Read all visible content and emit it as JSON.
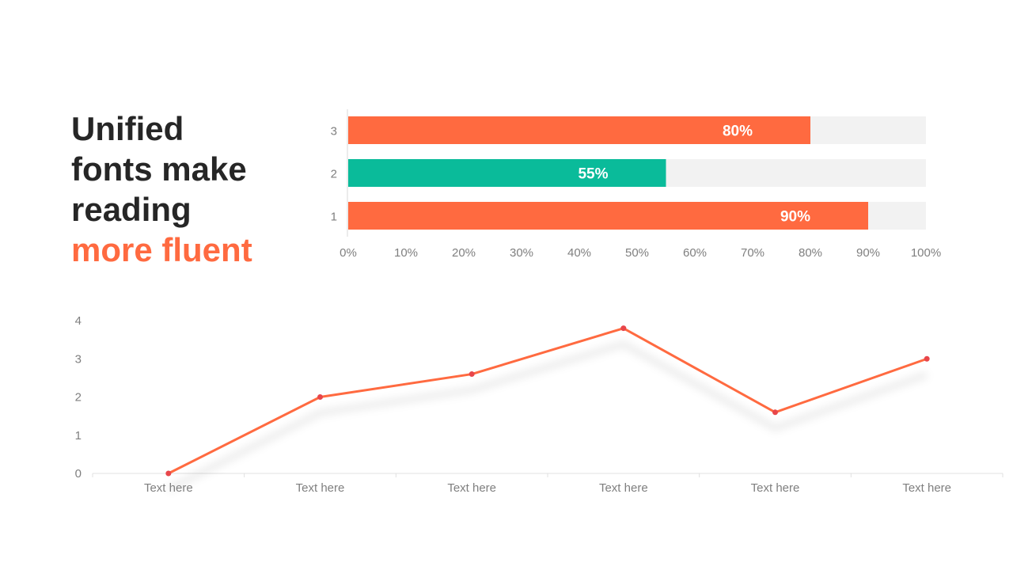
{
  "headline": {
    "lines": [
      "Unified",
      "fonts make",
      "reading"
    ],
    "accent": "more fluent"
  },
  "colors": {
    "accent": "#FF6A40",
    "teal": "#0ABB9A",
    "track": "#F2F2F2",
    "dark_text": "#262626",
    "axis_text": "#7F7F7F",
    "marker": "#E8464A"
  },
  "chart_data": [
    {
      "type": "bar",
      "orientation": "horizontal",
      "categories": [
        "3",
        "2",
        "1"
      ],
      "values": [
        80,
        55,
        90
      ],
      "value_labels": [
        "80%",
        "55%",
        "90%"
      ],
      "bar_colors": [
        "#FF6A40",
        "#0ABB9A",
        "#FF6A40"
      ],
      "background_track": true,
      "xlim": [
        0,
        100
      ],
      "xticks": [
        "0%",
        "10%",
        "20%",
        "30%",
        "40%",
        "50%",
        "60%",
        "70%",
        "80%",
        "90%",
        "100%"
      ],
      "grid": false,
      "title": "",
      "xlabel": "",
      "ylabel": ""
    },
    {
      "type": "line",
      "categories": [
        "Text here",
        "Text here",
        "Text here",
        "Text here",
        "Text here",
        "Text here"
      ],
      "values": [
        0,
        2,
        2.6,
        3.8,
        1.6,
        3
      ],
      "ylim": [
        0,
        4
      ],
      "yticks": [
        "0",
        "1",
        "2",
        "3",
        "4"
      ],
      "grid": false,
      "markers": true,
      "shadow": true,
      "title": "",
      "xlabel": "",
      "ylabel": ""
    }
  ]
}
